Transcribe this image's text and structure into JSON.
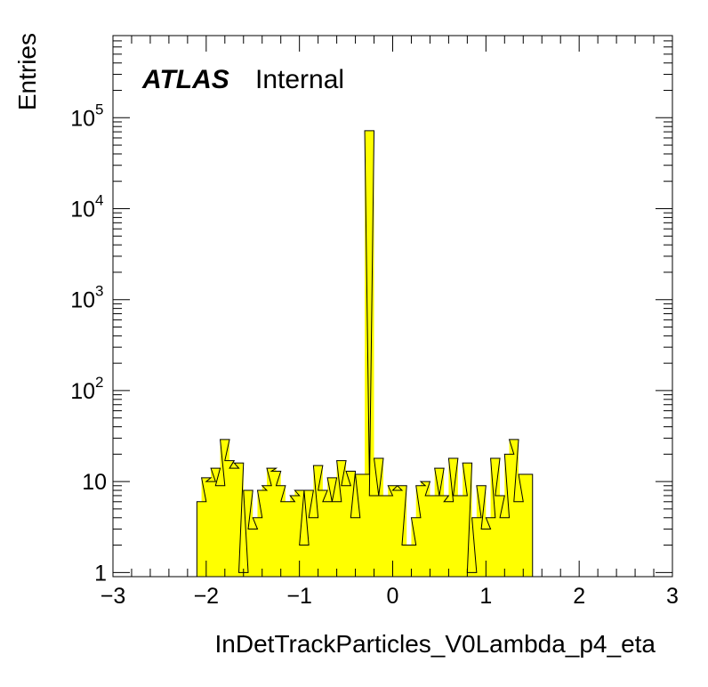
{
  "chart_data": {
    "type": "bar",
    "style": "histogram",
    "xlabel": "InDetTrackParticles_V0Lambda_p4_eta",
    "ylabel": "Entries",
    "xlim": [
      -3,
      3
    ],
    "ylim": [
      0.9,
      800000
    ],
    "log_y": true,
    "bin_width": 0.1,
    "x_ticks": [
      "−3",
      "−2",
      "−1",
      "0",
      "1",
      "2",
      "3"
    ],
    "y_ticks": [
      {
        "value": 1,
        "base": "1",
        "exp": ""
      },
      {
        "value": 10,
        "base": "10",
        "exp": ""
      },
      {
        "value": 100,
        "base": "10",
        "exp": "2"
      },
      {
        "value": 1000,
        "base": "10",
        "exp": "3"
      },
      {
        "value": 10000,
        "base": "10",
        "exp": "4"
      },
      {
        "value": 100000,
        "base": "10",
        "exp": "5"
      }
    ],
    "fill_color": "#ffff00",
    "line_color": "#000000",
    "bins": [
      {
        "x": -2.1,
        "y": 6
      },
      {
        "x": -2.05,
        "y": 11
      },
      {
        "x": -2.0,
        "y": 10
      },
      {
        "x": -1.95,
        "y": 14
      },
      {
        "x": -1.9,
        "y": 9
      },
      {
        "x": -1.85,
        "y": 29
      },
      {
        "x": -1.8,
        "y": 17
      },
      {
        "x": -1.75,
        "y": 14
      },
      {
        "x": -1.7,
        "y": 16
      },
      {
        "x": -1.65,
        "y": 1
      },
      {
        "x": -1.6,
        "y": 8
      },
      {
        "x": -1.55,
        "y": 3
      },
      {
        "x": -1.5,
        "y": 4
      },
      {
        "x": -1.45,
        "y": 8
      },
      {
        "x": -1.4,
        "y": 9
      },
      {
        "x": -1.35,
        "y": 14
      },
      {
        "x": -1.3,
        "y": 13
      },
      {
        "x": -1.25,
        "y": 9
      },
      {
        "x": -1.2,
        "y": 6
      },
      {
        "x": -1.15,
        "y": 6
      },
      {
        "x": -1.1,
        "y": 7
      },
      {
        "x": -1.05,
        "y": 8
      },
      {
        "x": -1.0,
        "y": 2
      },
      {
        "x": -0.95,
        "y": 8
      },
      {
        "x": -0.9,
        "y": 4
      },
      {
        "x": -0.85,
        "y": 15
      },
      {
        "x": -0.8,
        "y": 8
      },
      {
        "x": -0.75,
        "y": 6
      },
      {
        "x": -0.7,
        "y": 11
      },
      {
        "x": -0.65,
        "y": 6
      },
      {
        "x": -0.6,
        "y": 17
      },
      {
        "x": -0.55,
        "y": 9
      },
      {
        "x": -0.5,
        "y": 13
      },
      {
        "x": -0.45,
        "y": 4
      },
      {
        "x": -0.4,
        "y": 12
      },
      {
        "x": -0.35,
        "y": 12
      },
      {
        "x": -0.3,
        "y": 72000
      },
      {
        "x": -0.25,
        "y": 7
      },
      {
        "x": -0.2,
        "y": 18
      },
      {
        "x": -0.15,
        "y": 7
      },
      {
        "x": -0.1,
        "y": 7
      },
      {
        "x": -0.05,
        "y": 9
      },
      {
        "x": 0.0,
        "y": 8
      },
      {
        "x": 0.05,
        "y": 9
      },
      {
        "x": 0.1,
        "y": 2
      },
      {
        "x": 0.15,
        "y": 2
      },
      {
        "x": 0.2,
        "y": 4
      },
      {
        "x": 0.25,
        "y": 9
      },
      {
        "x": 0.3,
        "y": 10
      },
      {
        "x": 0.35,
        "y": 7
      },
      {
        "x": 0.4,
        "y": 7
      },
      {
        "x": 0.45,
        "y": 14
      },
      {
        "x": 0.5,
        "y": 7
      },
      {
        "x": 0.55,
        "y": 6
      },
      {
        "x": 0.6,
        "y": 18
      },
      {
        "x": 0.65,
        "y": 7
      },
      {
        "x": 0.7,
        "y": 7
      },
      {
        "x": 0.75,
        "y": 16
      },
      {
        "x": 0.8,
        "y": 1
      },
      {
        "x": 0.85,
        "y": 4
      },
      {
        "x": 0.9,
        "y": 9
      },
      {
        "x": 0.95,
        "y": 3
      },
      {
        "x": 1.0,
        "y": 4
      },
      {
        "x": 1.05,
        "y": 18
      },
      {
        "x": 1.1,
        "y": 7
      },
      {
        "x": 1.15,
        "y": 4
      },
      {
        "x": 1.2,
        "y": 20
      },
      {
        "x": 1.25,
        "y": 29
      },
      {
        "x": 1.3,
        "y": 6
      },
      {
        "x": 1.35,
        "y": 12
      },
      {
        "x": 1.4,
        "y": 12
      }
    ]
  },
  "labels": {
    "atlas": "ATLAS",
    "internal": "Internal"
  }
}
